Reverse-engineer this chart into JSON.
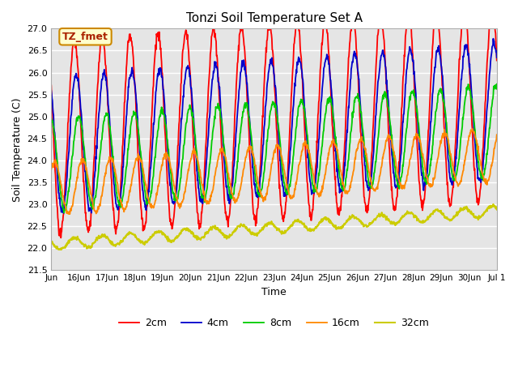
{
  "title": "Tonzi Soil Temperature Set A",
  "xlabel": "Time",
  "ylabel": "Soil Temperature (C)",
  "ylim": [
    21.5,
    27.0
  ],
  "annotation_text": "TZ_fmet",
  "annotation_bbox_fc": "#ffffcc",
  "annotation_bbox_ec": "#cc8800",
  "bg_color": "#ffffff",
  "plot_bg_color": "#e5e5e5",
  "grid_color": "#ffffff",
  "series": [
    {
      "label": "2cm",
      "color": "#ff0000",
      "amplitude": 2.2,
      "base": 24.5,
      "phase_hours": 0.0,
      "noise": 0.06
    },
    {
      "label": "4cm",
      "color": "#0000cc",
      "amplitude": 1.55,
      "base": 24.35,
      "phase_hours": 1.5,
      "noise": 0.05
    },
    {
      "label": "8cm",
      "color": "#00cc00",
      "amplitude": 1.05,
      "base": 23.9,
      "phase_hours": 3.5,
      "noise": 0.04
    },
    {
      "label": "16cm",
      "color": "#ff8800",
      "amplitude": 0.6,
      "base": 23.35,
      "phase_hours": 7.0,
      "noise": 0.03
    },
    {
      "label": "32cm",
      "color": "#cccc00",
      "amplitude": 0.12,
      "base": 22.08,
      "phase_hours": 0.0,
      "noise": 0.02
    }
  ],
  "ytick_values": [
    21.5,
    22.0,
    22.5,
    23.0,
    23.5,
    24.0,
    24.5,
    25.0,
    25.5,
    26.0,
    26.5,
    27.0
  ],
  "period_hours": 24,
  "start_day": 15,
  "total_days": 16,
  "n_points": 1152
}
